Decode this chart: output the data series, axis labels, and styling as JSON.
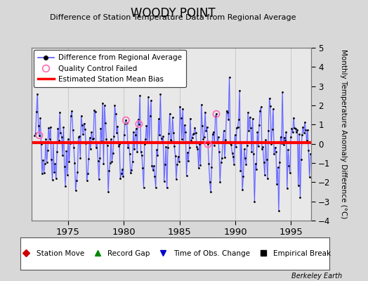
{
  "title": "WOODY POINT",
  "subtitle": "Difference of Station Temperature Data from Regional Average",
  "ylabel": "Monthly Temperature Anomaly Difference (°C)",
  "xlabel_ticks": [
    1975,
    1980,
    1985,
    1990,
    1995
  ],
  "ylim": [
    -4,
    5
  ],
  "xlim": [
    1971.7,
    1996.8
  ],
  "bias_line": 0.07,
  "bias_color": "#ff0000",
  "line_color": "#5555ff",
  "line_color2": "#aaaaff",
  "dot_color": "#000000",
  "qc_color": "#ff69b4",
  "background_color": "#d8d8d8",
  "plot_bg_color": "#e8e8e8",
  "grid_color": "#bbbbbb",
  "legend1_items": [
    {
      "label": "Difference from Regional Average"
    },
    {
      "label": "Quality Control Failed"
    },
    {
      "label": "Estimated Station Mean Bias"
    }
  ],
  "legend2_items": [
    {
      "label": "Station Move",
      "color": "#cc0000",
      "marker": "D"
    },
    {
      "label": "Record Gap",
      "color": "#008800",
      "marker": "^"
    },
    {
      "label": "Time of Obs. Change",
      "color": "#0000cc",
      "marker": "v"
    },
    {
      "label": "Empirical Break",
      "color": "#000000",
      "marker": "s"
    }
  ],
  "watermark": "Berkeley Earth",
  "seed": 42
}
